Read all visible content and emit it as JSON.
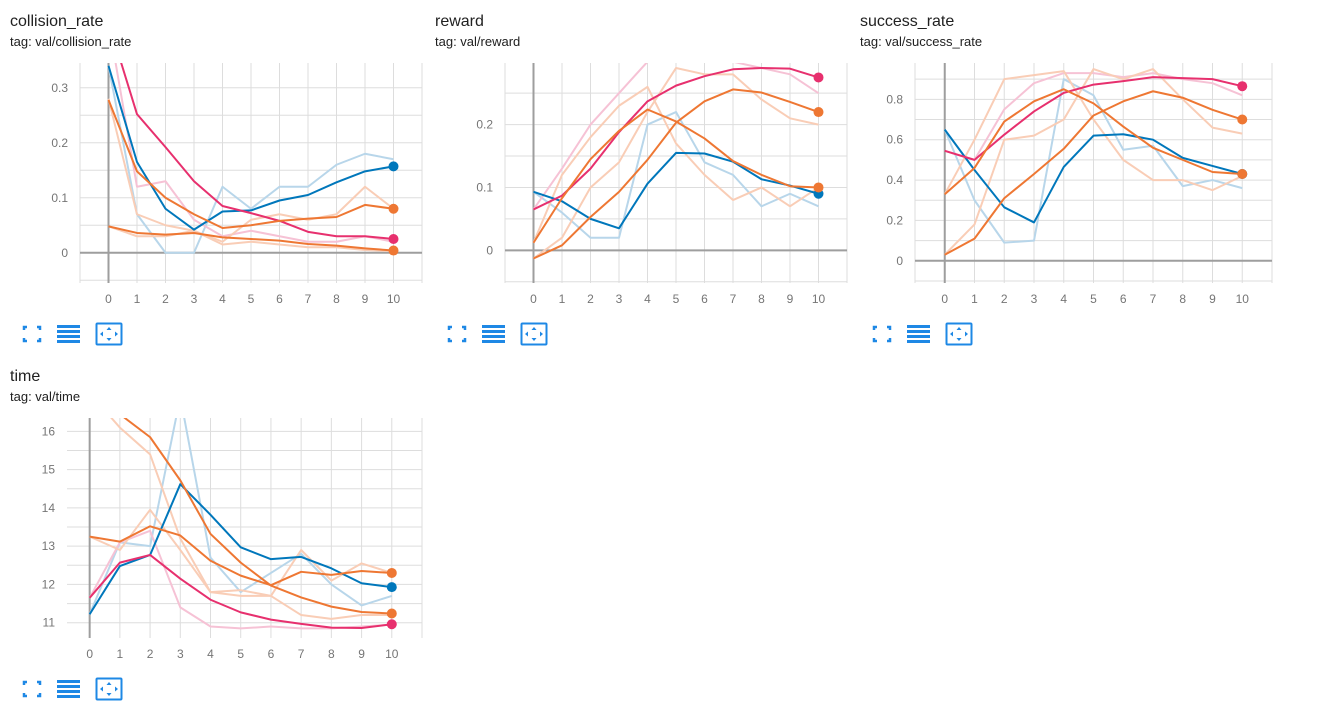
{
  "colors": {
    "blue": "#0077bb",
    "orange": "#ee7733",
    "magenta": "#e7306e",
    "pale_blue": "#b8d6ea",
    "pale_orange": "#f9cdb6",
    "pale_magenta": "#f6c2d5",
    "accent": "#1e88e5"
  },
  "toolbar": {
    "expand_icon": "expand-icon",
    "toggle_lines_icon": "toggle-lines-icon",
    "fit_domain_icon": "fit-domain-icon"
  },
  "charts": [
    {
      "title": "collision_rate",
      "tag": "tag: val/collision_rate"
    },
    {
      "title": "reward",
      "tag": "tag: val/reward"
    },
    {
      "title": "success_rate",
      "tag": "tag: val/success_rate"
    },
    {
      "title": "time",
      "tag": "tag: val/time"
    }
  ],
  "chart_data": [
    {
      "type": "line",
      "title": "collision_rate",
      "x": [
        0,
        1,
        2,
        3,
        4,
        5,
        6,
        7,
        8,
        9,
        10
      ],
      "xlim": [
        -1,
        11
      ],
      "ylim": [
        -0.055,
        0.345
      ],
      "yticks": [
        0,
        0.1,
        0.2,
        0.3
      ],
      "grid": true,
      "series": [
        {
          "color": "blue",
          "values": [
            0.34,
            0.165,
            0.08,
            0.042,
            0.075,
            0.077,
            0.095,
            0.105,
            0.128,
            0.148,
            0.157
          ],
          "raw": [
            0.34,
            0.07,
            0.0,
            0.0,
            0.12,
            0.08,
            0.12,
            0.12,
            0.16,
            0.18,
            0.17
          ]
        },
        {
          "color": "magenta",
          "values": [
            0.42,
            0.252,
            0.192,
            0.13,
            0.085,
            0.072,
            0.058,
            0.038,
            0.03,
            0.03,
            0.025
          ],
          "raw": [
            0.42,
            0.12,
            0.13,
            0.06,
            0.03,
            0.04,
            0.03,
            0.02,
            0.02,
            0.03,
            0.02
          ]
        },
        {
          "color": "orange",
          "values": [
            0.278,
            0.148,
            0.1,
            0.07,
            0.045,
            0.05,
            0.058,
            0.062,
            0.065,
            0.087,
            0.08
          ],
          "raw": [
            0.28,
            0.07,
            0.05,
            0.04,
            0.02,
            0.06,
            0.07,
            0.06,
            0.07,
            0.12,
            0.08
          ]
        },
        {
          "color": "orange",
          "values": [
            0.048,
            0.036,
            0.033,
            0.036,
            0.028,
            0.025,
            0.022,
            0.016,
            0.013,
            0.008,
            0.004
          ],
          "raw": [
            0.048,
            0.03,
            0.03,
            0.04,
            0.015,
            0.02,
            0.015,
            0.01,
            0.01,
            0.005,
            0.003
          ]
        }
      ]
    },
    {
      "type": "line",
      "title": "reward",
      "x": [
        0,
        1,
        2,
        3,
        4,
        5,
        6,
        7,
        8,
        9,
        10
      ],
      "xlim": [
        -1,
        11
      ],
      "ylim": [
        -0.052,
        0.298
      ],
      "yticks": [
        0,
        0.1,
        0.2
      ],
      "grid": true,
      "series": [
        {
          "color": "blue",
          "values": [
            0.093,
            0.078,
            0.05,
            0.035,
            0.106,
            0.155,
            0.154,
            0.141,
            0.113,
            0.103,
            0.09
          ],
          "raw": [
            0.093,
            0.06,
            0.02,
            0.02,
            0.2,
            0.22,
            0.14,
            0.12,
            0.07,
            0.09,
            0.07
          ]
        },
        {
          "color": "magenta",
          "values": [
            0.065,
            0.087,
            0.13,
            0.188,
            0.237,
            0.262,
            0.277,
            0.288,
            0.29,
            0.289,
            0.275
          ],
          "raw": [
            0.065,
            0.13,
            0.2,
            0.25,
            0.3,
            0.3,
            0.3,
            0.3,
            0.29,
            0.28,
            0.25
          ]
        },
        {
          "color": "orange",
          "values": [
            0.012,
            0.083,
            0.145,
            0.19,
            0.224,
            0.205,
            0.178,
            0.142,
            0.12,
            0.102,
            0.1
          ],
          "raw": [
            0.012,
            0.12,
            0.18,
            0.23,
            0.26,
            0.17,
            0.12,
            0.08,
            0.1,
            0.07,
            0.1
          ]
        },
        {
          "color": "orange",
          "values": [
            -0.013,
            0.008,
            0.053,
            0.093,
            0.144,
            0.203,
            0.237,
            0.256,
            0.251,
            0.236,
            0.22
          ],
          "raw": [
            -0.013,
            0.02,
            0.1,
            0.14,
            0.22,
            0.29,
            0.28,
            0.28,
            0.24,
            0.21,
            0.2
          ]
        }
      ]
    },
    {
      "type": "line",
      "title": "success_rate",
      "x": [
        0,
        1,
        2,
        3,
        4,
        5,
        6,
        7,
        8,
        9,
        10
      ],
      "xlim": [
        -1,
        11
      ],
      "ylim": [
        -0.11,
        0.98
      ],
      "yticks": [
        0,
        0.2,
        0.4,
        0.6,
        0.8
      ],
      "grid": true,
      "series": [
        {
          "color": "blue",
          "values": [
            0.65,
            0.45,
            0.265,
            0.19,
            0.465,
            0.62,
            0.627,
            0.6,
            0.51,
            0.47,
            0.43
          ],
          "raw": [
            0.65,
            0.3,
            0.09,
            0.1,
            0.9,
            0.82,
            0.55,
            0.57,
            0.37,
            0.4,
            0.36
          ]
        },
        {
          "color": "magenta",
          "values": [
            0.545,
            0.5,
            0.625,
            0.74,
            0.832,
            0.873,
            0.89,
            0.91,
            0.905,
            0.9,
            0.865
          ],
          "raw": [
            0.545,
            0.5,
            0.75,
            0.88,
            0.93,
            0.93,
            0.91,
            0.93,
            0.9,
            0.88,
            0.82
          ]
        },
        {
          "color": "orange",
          "values": [
            0.33,
            0.46,
            0.69,
            0.79,
            0.85,
            0.78,
            0.665,
            0.56,
            0.5,
            0.44,
            0.43
          ],
          "raw": [
            0.33,
            0.6,
            0.9,
            0.92,
            0.94,
            0.7,
            0.5,
            0.4,
            0.4,
            0.35,
            0.42
          ]
        },
        {
          "color": "orange",
          "values": [
            0.03,
            0.11,
            0.31,
            0.43,
            0.555,
            0.72,
            0.79,
            0.84,
            0.808,
            0.748,
            0.7
          ],
          "raw": [
            0.03,
            0.18,
            0.6,
            0.62,
            0.7,
            0.95,
            0.9,
            0.95,
            0.8,
            0.66,
            0.63
          ]
        }
      ]
    },
    {
      "type": "line",
      "title": "time",
      "x": [
        0,
        1,
        2,
        3,
        4,
        5,
        6,
        7,
        8,
        9,
        10
      ],
      "xlim": [
        -0.75,
        11
      ],
      "ylim": [
        10.6,
        16.35
      ],
      "yticks": [
        11,
        12,
        13,
        14,
        15,
        16
      ],
      "grid": true,
      "series": [
        {
          "color": "blue",
          "values": [
            11.22,
            12.48,
            12.77,
            14.62,
            13.82,
            12.97,
            12.66,
            12.72,
            12.42,
            12.03,
            11.93
          ],
          "raw": [
            11.22,
            13.1,
            13.0,
            16.9,
            12.7,
            11.8,
            12.3,
            12.8,
            12.0,
            11.45,
            11.7
          ]
        },
        {
          "color": "magenta",
          "values": [
            11.65,
            12.57,
            12.77,
            12.15,
            11.6,
            11.27,
            11.08,
            10.97,
            10.87,
            10.86,
            10.96
          ],
          "raw": [
            11.65,
            13.1,
            13.4,
            11.4,
            10.9,
            10.85,
            10.9,
            10.85,
            10.85,
            10.9,
            10.95
          ]
        },
        {
          "color": "orange",
          "values": [
            13.25,
            13.12,
            13.52,
            13.28,
            12.62,
            12.23,
            11.98,
            12.33,
            12.25,
            12.35,
            12.3
          ],
          "raw": [
            13.25,
            12.9,
            13.95,
            12.9,
            11.8,
            11.85,
            11.7,
            12.9,
            12.1,
            12.55,
            12.3
          ]
        },
        {
          "color": "orange",
          "values": [
            17.0,
            16.45,
            15.85,
            14.72,
            13.32,
            12.57,
            11.97,
            11.66,
            11.42,
            11.28,
            11.24
          ],
          "raw": [
            17.0,
            16.1,
            15.4,
            13.2,
            11.8,
            11.7,
            11.7,
            11.2,
            11.1,
            11.2,
            11.2
          ]
        }
      ]
    }
  ]
}
